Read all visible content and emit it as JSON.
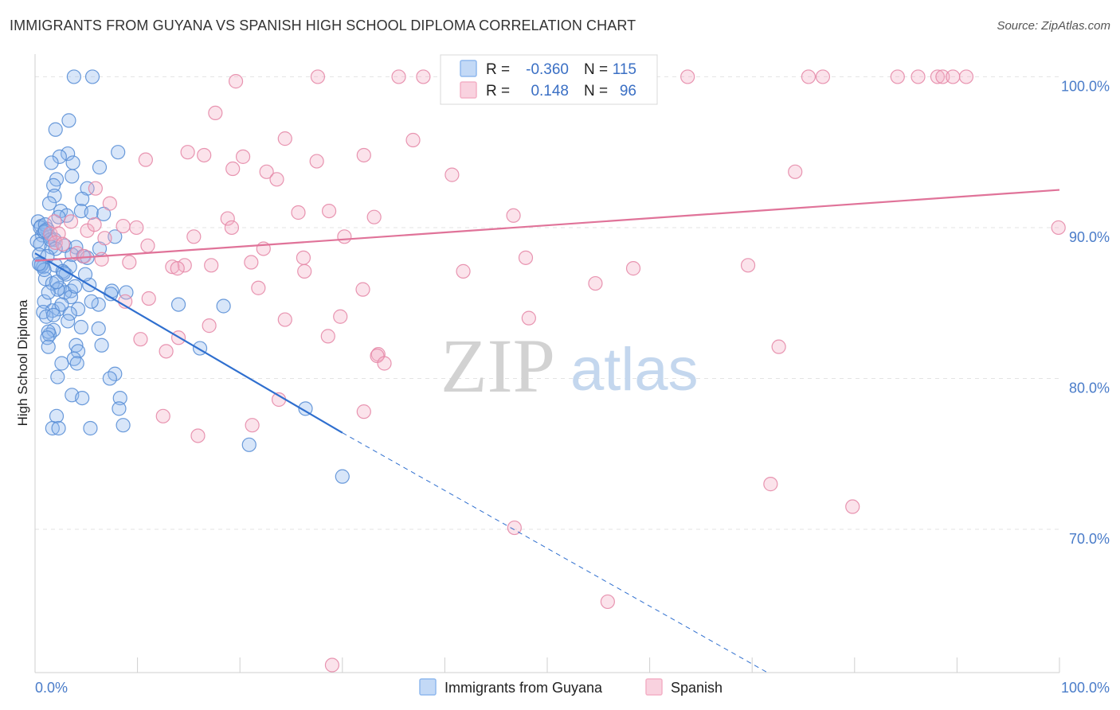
{
  "title": "IMMIGRANTS FROM GUYANA VS SPANISH HIGH SCHOOL DIPLOMA CORRELATION CHART",
  "source": "Source: ZipAtlas.com",
  "watermark": {
    "zip": "ZIP",
    "atlas": "atlas"
  },
  "stats_box": {
    "rows": [
      {
        "r_label": "R =",
        "r_value": "-0.360",
        "n_label": "N =",
        "n_value": "115",
        "color": "#8fb8ee"
      },
      {
        "r_label": "R =",
        "r_value": "0.148",
        "n_label": "N =",
        "n_value": "96",
        "color": "#f4b0c6"
      }
    ]
  },
  "legend": {
    "items": [
      {
        "label": "Immigrants from Guyana",
        "color": "#8fb8ee"
      },
      {
        "label": "Spanish",
        "color": "#f4b0c6"
      }
    ]
  },
  "chart_data": {
    "type": "scatter",
    "title": "IMMIGRANTS FROM GUYANA VS SPANISH HIGH SCHOOL DIPLOMA CORRELATION CHART",
    "xlabel": "",
    "ylabel": "High School Diploma",
    "xlim": [
      0,
      100
    ],
    "ylim": [
      60.5,
      101.5
    ],
    "x_tick_labels": [
      {
        "value": 0,
        "label": "0.0%"
      },
      {
        "value": 100,
        "label": "100.0%"
      }
    ],
    "y_tick_labels": [
      {
        "value": 70,
        "label": "70.0%"
      },
      {
        "value": 80,
        "label": "80.0%"
      },
      {
        "value": 90,
        "label": "90.0%"
      },
      {
        "value": 100,
        "label": "100.0%"
      }
    ],
    "grid": true,
    "series": [
      {
        "name": "Immigrants from Guyana",
        "color": "#8fb8ee",
        "stroke": "#5a8fd6",
        "trend": {
          "x0": 0,
          "y0": 88.3,
          "x1": 30,
          "y1": 76.4,
          "dash_to_x": 71.5,
          "dash_to_y": 60.5,
          "color": "#2f6fcf"
        },
        "points": [
          [
            3.8,
            100
          ],
          [
            5.6,
            100
          ],
          [
            2.0,
            96.5
          ],
          [
            3.3,
            97.1
          ],
          [
            3.2,
            94.9
          ],
          [
            2.4,
            94.7
          ],
          [
            8.1,
            95.0
          ],
          [
            1.6,
            94.3
          ],
          [
            3.7,
            94.3
          ],
          [
            6.3,
            94.0
          ],
          [
            2.1,
            93.2
          ],
          [
            3.6,
            93.4
          ],
          [
            1.8,
            92.8
          ],
          [
            5.1,
            92.6
          ],
          [
            1.9,
            92.1
          ],
          [
            4.6,
            91.9
          ],
          [
            1.4,
            91.6
          ],
          [
            2.5,
            91.1
          ],
          [
            4.5,
            91.1
          ],
          [
            5.5,
            91.0
          ],
          [
            3.1,
            90.8
          ],
          [
            6.7,
            90.9
          ],
          [
            2.3,
            90.7
          ],
          [
            0.3,
            90.4
          ],
          [
            0.6,
            90.1
          ],
          [
            1.2,
            89.9
          ],
          [
            0.7,
            89.5
          ],
          [
            1.4,
            89.4
          ],
          [
            7.8,
            89.4
          ],
          [
            0.2,
            89.1
          ],
          [
            1.9,
            89.2
          ],
          [
            0.5,
            88.9
          ],
          [
            2.9,
            88.8
          ],
          [
            1.6,
            88.7
          ],
          [
            4.0,
            88.7
          ],
          [
            6.3,
            88.6
          ],
          [
            0.4,
            88.2
          ],
          [
            3.6,
            88.2
          ],
          [
            4.7,
            88.1
          ],
          [
            5.1,
            88.0
          ],
          [
            0.6,
            87.6
          ],
          [
            2.0,
            87.5
          ],
          [
            3.4,
            87.4
          ],
          [
            0.8,
            87.4
          ],
          [
            2.7,
            87.1
          ],
          [
            1.0,
            86.6
          ],
          [
            5.3,
            86.2
          ],
          [
            2.4,
            86.0
          ],
          [
            3.5,
            85.8
          ],
          [
            2.9,
            85.7
          ],
          [
            8.9,
            85.7
          ],
          [
            7.5,
            85.8
          ],
          [
            0.9,
            85.1
          ],
          [
            6.2,
            84.9
          ],
          [
            2.3,
            84.6
          ],
          [
            4.2,
            84.6
          ],
          [
            14.0,
            84.9
          ],
          [
            18.4,
            84.8
          ],
          [
            3.4,
            84.3
          ],
          [
            1.7,
            84.5
          ],
          [
            0.8,
            84.4
          ],
          [
            1.1,
            84.1
          ],
          [
            3.2,
            83.8
          ],
          [
            6.2,
            83.3
          ],
          [
            1.8,
            83.2
          ],
          [
            1.4,
            82.9
          ],
          [
            1.3,
            83.1
          ],
          [
            1.2,
            82.7
          ],
          [
            4.0,
            82.2
          ],
          [
            6.5,
            82.2
          ],
          [
            1.3,
            82.1
          ],
          [
            16.1,
            82.0
          ],
          [
            4.2,
            81.8
          ],
          [
            3.8,
            81.3
          ],
          [
            4.1,
            81.0
          ],
          [
            2.6,
            81.0
          ],
          [
            7.8,
            80.3
          ],
          [
            2.2,
            80.1
          ],
          [
            7.3,
            80.0
          ],
          [
            3.6,
            78.9
          ],
          [
            4.6,
            78.7
          ],
          [
            8.3,
            78.7
          ],
          [
            8.2,
            78.0
          ],
          [
            26.4,
            78.0
          ],
          [
            2.1,
            77.5
          ],
          [
            8.6,
            76.9
          ],
          [
            1.7,
            76.7
          ],
          [
            2.3,
            76.7
          ],
          [
            5.4,
            76.7
          ],
          [
            20.9,
            75.6
          ],
          [
            30.0,
            73.5
          ],
          [
            0.5,
            90.0
          ],
          [
            1.0,
            90.2
          ],
          [
            0.9,
            89.7
          ],
          [
            1.5,
            89.2
          ],
          [
            2.0,
            88.6
          ],
          [
            1.2,
            88.1
          ],
          [
            0.6,
            87.5
          ],
          [
            0.9,
            87.2
          ],
          [
            1.7,
            86.3
          ],
          [
            2.2,
            85.9
          ],
          [
            3.0,
            86.9
          ],
          [
            4.9,
            86.9
          ],
          [
            5.5,
            85.1
          ],
          [
            3.5,
            85.4
          ],
          [
            2.6,
            84.9
          ],
          [
            1.8,
            84.2
          ],
          [
            4.5,
            83.4
          ],
          [
            7.4,
            85.6
          ],
          [
            1.0,
            89.8
          ],
          [
            0.4,
            87.6
          ],
          [
            3.9,
            86.1
          ],
          [
            2.8,
            87.0
          ],
          [
            1.3,
            85.7
          ],
          [
            2.1,
            86.4
          ]
        ]
      },
      {
        "name": "Spanish",
        "color": "#f4b0c6",
        "stroke": "#e68aa9",
        "trend": {
          "x0": 0,
          "y0": 87.8,
          "x1": 100,
          "y1": 92.5,
          "color": "#e07399"
        },
        "points": [
          [
            19.6,
            99.7
          ],
          [
            27.6,
            100
          ],
          [
            35.5,
            100
          ],
          [
            37.9,
            100
          ],
          [
            47.2,
            100
          ],
          [
            52.6,
            100
          ],
          [
            54.7,
            100
          ],
          [
            56.0,
            100
          ],
          [
            63.7,
            100
          ],
          [
            75.5,
            100
          ],
          [
            76.9,
            100
          ],
          [
            84.2,
            100
          ],
          [
            86.2,
            100
          ],
          [
            88.1,
            100
          ],
          [
            88.6,
            100
          ],
          [
            89.6,
            100
          ],
          [
            90.9,
            100
          ],
          [
            17.6,
            97.6
          ],
          [
            24.4,
            95.9
          ],
          [
            36.9,
            95.8
          ],
          [
            14.9,
            95.0
          ],
          [
            16.5,
            94.8
          ],
          [
            10.8,
            94.5
          ],
          [
            20.3,
            94.7
          ],
          [
            32.1,
            94.8
          ],
          [
            27.5,
            94.4
          ],
          [
            19.3,
            93.9
          ],
          [
            22.6,
            93.7
          ],
          [
            23.6,
            93.2
          ],
          [
            40.7,
            93.5
          ],
          [
            74.2,
            93.7
          ],
          [
            5.9,
            92.6
          ],
          [
            7.3,
            91.6
          ],
          [
            25.7,
            91.0
          ],
          [
            28.7,
            91.1
          ],
          [
            33.1,
            90.7
          ],
          [
            46.7,
            90.8
          ],
          [
            18.8,
            90.6
          ],
          [
            1.9,
            90.4
          ],
          [
            3.5,
            90.4
          ],
          [
            19.2,
            90.0
          ],
          [
            8.6,
            90.1
          ],
          [
            9.9,
            90.0
          ],
          [
            5.1,
            89.8
          ],
          [
            1.5,
            89.6
          ],
          [
            2.3,
            89.6
          ],
          [
            15.5,
            89.4
          ],
          [
            30.2,
            89.4
          ],
          [
            6.8,
            89.3
          ],
          [
            2.0,
            89.0
          ],
          [
            2.7,
            88.9
          ],
          [
            11.0,
            88.8
          ],
          [
            22.3,
            88.6
          ],
          [
            4.1,
            88.3
          ],
          [
            26.2,
            88.0
          ],
          [
            47.9,
            88.0
          ],
          [
            4.8,
            88.1
          ],
          [
            9.2,
            87.7
          ],
          [
            14.6,
            87.5
          ],
          [
            17.2,
            87.5
          ],
          [
            21.1,
            87.7
          ],
          [
            13.4,
            87.4
          ],
          [
            26.3,
            87.1
          ],
          [
            41.8,
            87.1
          ],
          [
            58.4,
            87.3
          ],
          [
            69.6,
            87.5
          ],
          [
            6.5,
            87.9
          ],
          [
            21.8,
            86.0
          ],
          [
            32.0,
            85.9
          ],
          [
            54.7,
            86.3
          ],
          [
            8.8,
            85.1
          ],
          [
            11.1,
            85.3
          ],
          [
            24.4,
            83.9
          ],
          [
            29.8,
            84.1
          ],
          [
            48.2,
            84.0
          ],
          [
            17.0,
            83.5
          ],
          [
            10.3,
            82.6
          ],
          [
            14.0,
            82.7
          ],
          [
            28.6,
            82.8
          ],
          [
            12.8,
            81.8
          ],
          [
            72.6,
            82.1
          ],
          [
            33.5,
            81.6
          ],
          [
            33.4,
            81.5
          ],
          [
            34.1,
            81.0
          ],
          [
            23.8,
            78.6
          ],
          [
            32.1,
            77.8
          ],
          [
            12.5,
            77.5
          ],
          [
            21.2,
            76.9
          ],
          [
            15.9,
            76.2
          ],
          [
            71.8,
            73.0
          ],
          [
            79.8,
            71.5
          ],
          [
            46.8,
            70.1
          ],
          [
            55.9,
            65.2
          ],
          [
            29.0,
            61.0
          ],
          [
            99.9,
            90.0
          ],
          [
            13.9,
            87.3
          ],
          [
            5.8,
            90.2
          ]
        ]
      }
    ]
  }
}
